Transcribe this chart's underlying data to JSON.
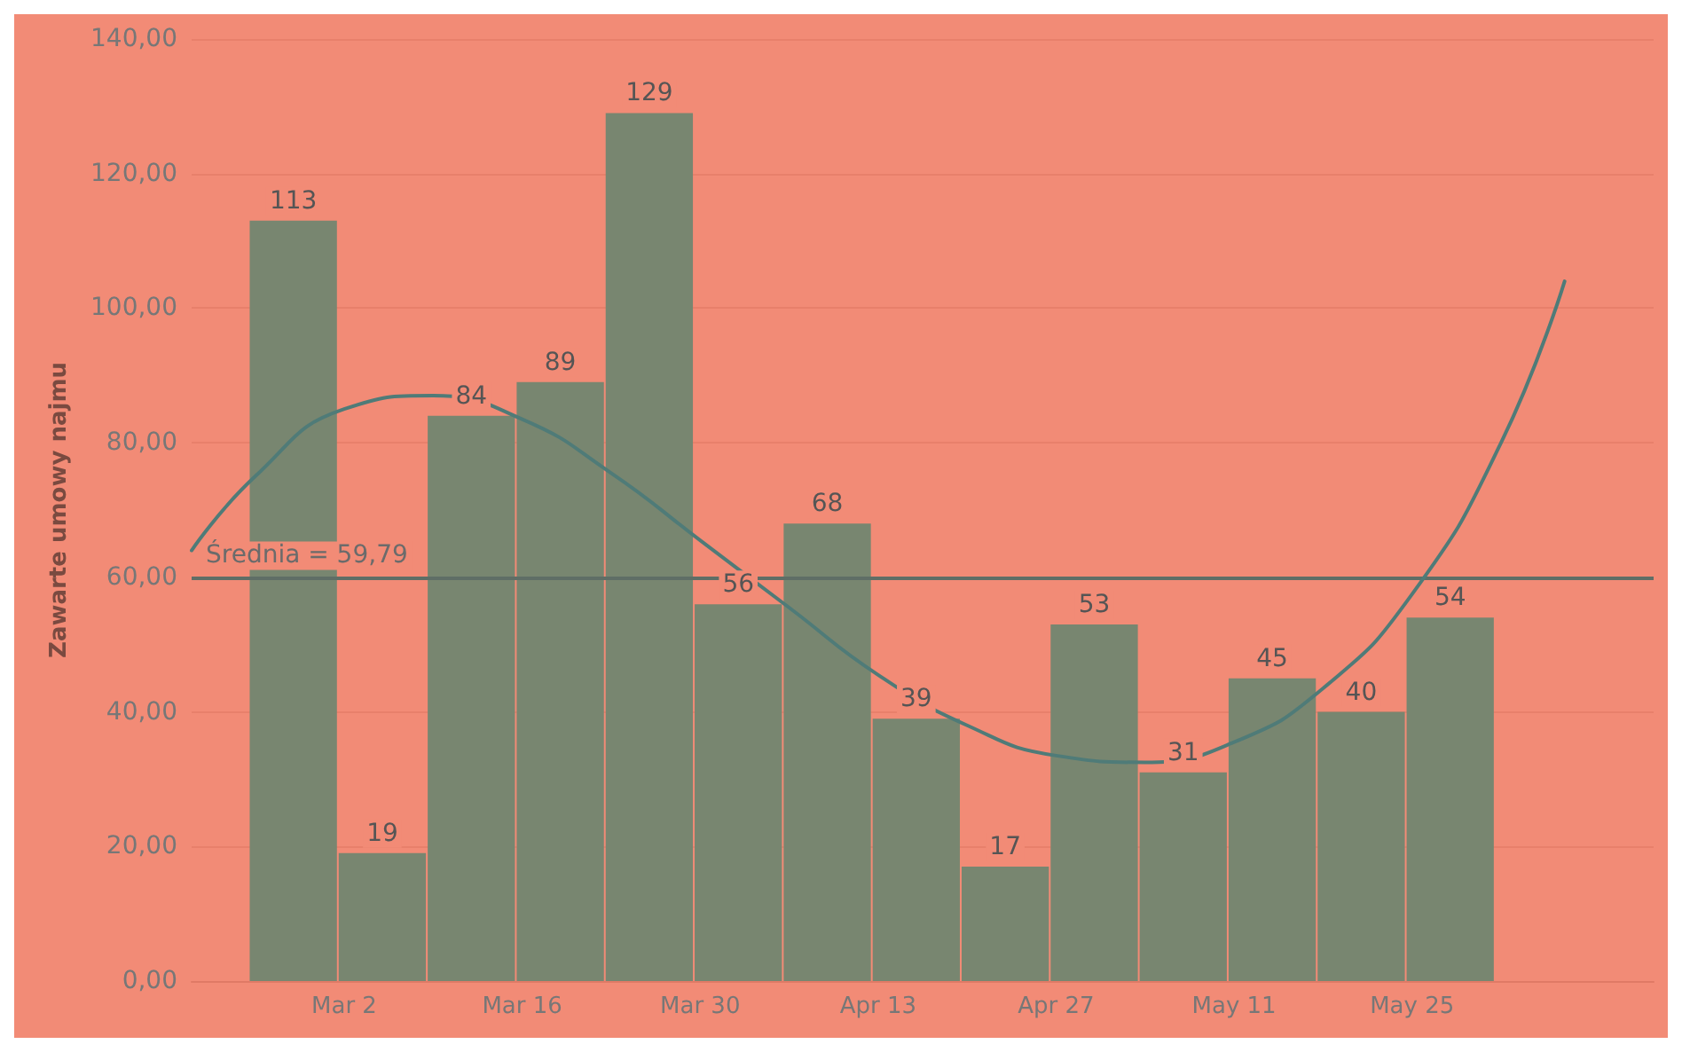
{
  "chart_data": {
    "type": "bar",
    "ylabel": "Zawarte umowy najmu",
    "x": [
      "--02-26",
      "--03-05",
      "--03-12",
      "--03-19",
      "--03-26",
      "--04-02",
      "--04-09",
      "--04-16",
      "--04-23",
      "--04-30",
      "--05-07",
      "--05-14",
      "--05-21",
      "--05-28"
    ],
    "series": [
      {
        "color": "#788670",
        "values": [
          113,
          19,
          84,
          89,
          129,
          56,
          68,
          39,
          17,
          53,
          31,
          45,
          40,
          54
        ],
        "value_labels": [
          "113",
          "19",
          "84",
          "89",
          "129",
          "56",
          "68",
          "39",
          "17",
          "53",
          "31",
          "45",
          "40",
          "54"
        ]
      },
      {
        "type": "line",
        "color": "#4f7b78",
        "x": [
          "--02-18",
          "--02-23",
          "--03-02",
          "--03-09",
          "--03-16",
          "--03-23",
          "--03-30",
          "--04-06",
          "--04-13",
          "--04-20",
          "--04-27",
          "--05-04",
          "--05-11",
          "--05-18",
          "--05-25",
          "--06-01",
          "--06-06"
        ],
        "values": [
          64,
          75,
          85,
          87,
          83.5,
          75.5,
          65.5,
          55.5,
          45.5,
          38,
          33.5,
          32.5,
          35.5,
          43.5,
          57.5,
          80,
          104
        ]
      }
    ],
    "xlim": [
      "--02-18",
      "--06-13"
    ],
    "xticks": [
      {
        "value": "--03-02",
        "label": "Mar 2"
      },
      {
        "value": "--03-16",
        "label": "Mar 16"
      },
      {
        "value": "--03-30",
        "label": "Mar 30"
      },
      {
        "value": "--04-13",
        "label": "Apr 13"
      },
      {
        "value": "--04-27",
        "label": "Apr 27"
      },
      {
        "value": "--05-11",
        "label": "May 11"
      },
      {
        "value": "--05-25",
        "label": "May 25"
      }
    ],
    "ylim": [
      0,
      140
    ],
    "yticks": [
      {
        "value": 0,
        "label": "0,00"
      },
      {
        "value": 20,
        "label": "20,00"
      },
      {
        "value": 40,
        "label": "40,00"
      },
      {
        "value": 60,
        "label": "60,00"
      },
      {
        "value": 80,
        "label": "80,00"
      },
      {
        "value": 100,
        "label": "100,00"
      },
      {
        "value": 120,
        "label": "120,00"
      },
      {
        "value": 140,
        "label": "140,00"
      }
    ],
    "ref_lines": [
      {
        "axis": "y",
        "value": 59.79,
        "label": "Średnia = 59,79",
        "color": "#5f6e66"
      }
    ],
    "grid": "y"
  }
}
